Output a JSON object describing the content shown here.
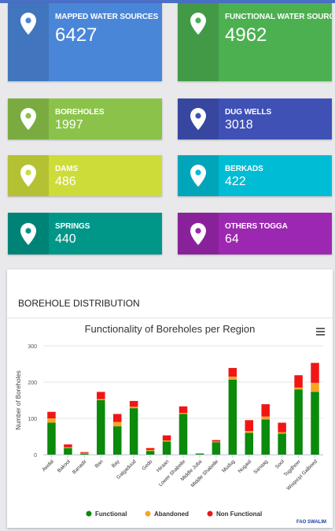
{
  "tiles": [
    {
      "label": "MAPPED WATER SOURCES",
      "value": "6427",
      "color": "#4a86d8",
      "icon": "map-pin-icon"
    },
    {
      "label": "FUNCTIONAL WATER SOURCES",
      "value": "4962",
      "color": "#4cb050",
      "icon": "map-pin-icon"
    },
    {
      "label": "BOREHOLES",
      "value": "1997",
      "color": "#8bc34a",
      "icon": "map-pin-icon"
    },
    {
      "label": "DUG WELLS",
      "value": "3018",
      "color": "#3f51b5",
      "icon": "map-pin-icon"
    },
    {
      "label": "DAMS",
      "value": "486",
      "color": "#cddc39",
      "icon": "map-pin-icon"
    },
    {
      "label": "BERKADS",
      "value": "422",
      "color": "#00bcd4",
      "icon": "map-pin-icon"
    },
    {
      "label": "SPRINGS",
      "value": "440",
      "color": "#009688",
      "icon": "map-pin-icon"
    },
    {
      "label": "OTHERS TOGGA",
      "value": "64",
      "color": "#9c27b0",
      "icon": "map-pin-icon"
    }
  ],
  "card": {
    "title": "BOREHOLE DISTRIBUTION"
  },
  "chart_data": {
    "type": "bar",
    "stacked": true,
    "title": "Functionality of Boreholes per Region",
    "xlabel": "",
    "ylabel": "Number of Boreholes",
    "ylim": [
      0,
      300
    ],
    "yticks": [
      0,
      100,
      200,
      300
    ],
    "categories": [
      "Awdal",
      "Bakool",
      "Banadir",
      "Bari",
      "Bay",
      "Galgaduud",
      "Gedo",
      "Hiraan",
      "Lower Shabelle",
      "Middle Juba",
      "Middle Shabelle",
      "Mudug",
      "Nugaal",
      "Sanaag",
      "Sool",
      "Togdheer",
      "Woqooyi Galbeed"
    ],
    "series": [
      {
        "name": "Functional",
        "color": "#0b8a0b",
        "values": [
          88,
          18,
          3,
          150,
          78,
          128,
          10,
          36,
          112,
          3,
          34,
          207,
          60,
          97,
          58,
          180,
          173
        ]
      },
      {
        "name": "Abandoned",
        "color": "#f5a623",
        "values": [
          12,
          2,
          2,
          3,
          12,
          4,
          3,
          3,
          3,
          0,
          2,
          8,
          5,
          8,
          4,
          5,
          25
        ]
      },
      {
        "name": "Non Functional",
        "color": "#f01616",
        "values": [
          18,
          8,
          2,
          20,
          22,
          16,
          5,
          14,
          18,
          0,
          4,
          24,
          30,
          34,
          26,
          34,
          55
        ]
      }
    ],
    "legend_position": "bottom",
    "grid": true,
    "credit": "FAO SWALIM",
    "menu_icon": "hamburger-menu-icon"
  }
}
